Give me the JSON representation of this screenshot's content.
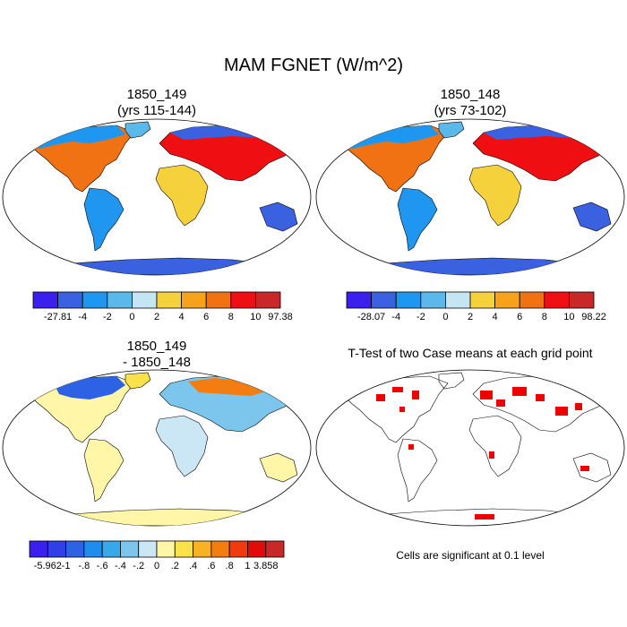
{
  "main_title": "MAM FGNET (W/m^2)",
  "panels": {
    "p1": {
      "line1": "1850_149",
      "line2": "(yrs 115-144)"
    },
    "p2": {
      "line1": "1850_148",
      "line2": "(yrs 73-102)"
    },
    "p3": {
      "line1": "1850_149",
      "line2": "- 1850_148"
    },
    "p4": {
      "line1": "T-Test of two Case means at each grid point"
    }
  },
  "colorbars": {
    "cb1": {
      "labels": [
        "-27.81",
        "-4",
        "-2",
        "0",
        "2",
        "4",
        "6",
        "8",
        "10",
        "97.38"
      ],
      "colors": [
        "#3a1fef",
        "#3a62e0",
        "#1f96f0",
        "#5ab9ea",
        "#c4e6f4",
        "#f5d23c",
        "#f6a21c",
        "#f07212",
        "#ef0f12",
        "#c82828"
      ]
    },
    "cb2": {
      "labels": [
        "-28.07",
        "-4",
        "-2",
        "0",
        "2",
        "4",
        "6",
        "8",
        "10",
        "98.22"
      ],
      "colors": [
        "#3a1fef",
        "#3a62e0",
        "#1f96f0",
        "#5ab9ea",
        "#c4e6f4",
        "#f5d23c",
        "#f6a21c",
        "#f07212",
        "#ef0f12",
        "#c82828"
      ]
    },
    "cb3": {
      "labels": [
        "-5.962",
        "-1",
        "-.8",
        "-.6",
        "-.4",
        "-.2",
        "0",
        ".2",
        ".4",
        ".6",
        ".8",
        "1",
        "3.858"
      ],
      "colors": [
        "#3a1fef",
        "#2f40e6",
        "#2e62e4",
        "#1f8cf0",
        "#38a8ec",
        "#7cc6ee",
        "#cbe7f5",
        "#fff6a8",
        "#fbe24a",
        "#f8b224",
        "#f47d12",
        "#ef3a0e",
        "#e30a0a",
        "#c82828"
      ]
    }
  },
  "significance_note": "Cells are significant at 0.1 level",
  "colors": {
    "significant": "#ef0000",
    "outline": "#000000"
  }
}
